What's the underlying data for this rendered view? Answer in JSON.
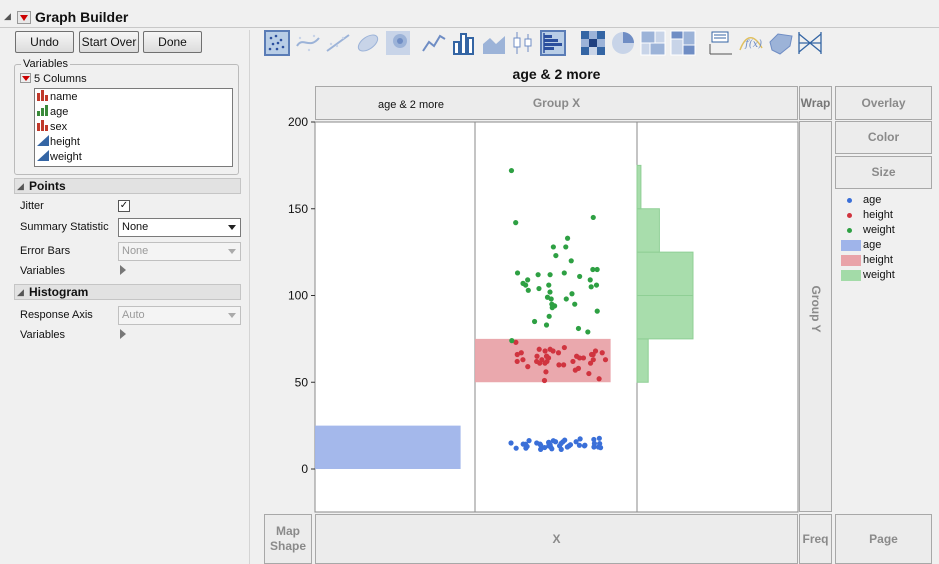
{
  "window": {
    "title": "Graph Builder"
  },
  "buttons": {
    "undo": "Undo",
    "start_over": "Start Over",
    "done": "Done"
  },
  "variables_panel": {
    "title": "Variables",
    "columns_header": "5 Columns",
    "columns": [
      {
        "name": "name",
        "icon": "nominal-icon",
        "color": "#c0392b"
      },
      {
        "name": "age",
        "icon": "ordinal-icon",
        "color": "#3a8a3a"
      },
      {
        "name": "sex",
        "icon": "nominal-icon",
        "color": "#c0392b"
      },
      {
        "name": "height",
        "icon": "continuous-icon",
        "color": "#3465a4"
      },
      {
        "name": "weight",
        "icon": "continuous-icon",
        "color": "#3465a4"
      }
    ]
  },
  "points_section": {
    "title": "Points",
    "jitter_label": "Jitter",
    "jitter_checked": true,
    "summary_label": "Summary Statistic",
    "summary_value": "None",
    "error_bars_label": "Error Bars",
    "error_bars_value": "None",
    "variables_label": "Variables"
  },
  "histogram_section": {
    "title": "Histogram",
    "response_axis_label": "Response Axis",
    "response_axis_value": "Auto",
    "variables_label": "Variables"
  },
  "toolbar": {
    "icons": [
      "points-icon",
      "contour-icon",
      "line-of-fit-icon",
      "ellipse-icon",
      "density-icon",
      "line-icon",
      "bar-icon",
      "area-icon",
      "box-plot-icon",
      "histogram-icon",
      "heatmap-icon",
      "pie-icon",
      "treemap-icon",
      "mosaic-icon",
      "caption-box-icon",
      "formula-icon",
      "map-shapes-icon",
      "parallel-icon"
    ],
    "active": [
      "points-icon",
      "histogram-icon"
    ]
  },
  "graph": {
    "title": "age & 2 more",
    "zones": {
      "group_x": "Group X",
      "group_x_value": "age & 2 more",
      "wrap": "Wrap",
      "overlay": "Overlay",
      "color": "Color",
      "size": "Size",
      "group_y": "Group Y",
      "map_shape": "Map\nShape",
      "x": "X",
      "freq": "Freq",
      "page": "Page"
    },
    "legend": [
      {
        "label": "age",
        "kind": "point",
        "color": "#3a6fd8"
      },
      {
        "label": "height",
        "kind": "point",
        "color": "#d0343f"
      },
      {
        "label": "weight",
        "kind": "point",
        "color": "#2ea043"
      },
      {
        "label": "age",
        "kind": "bar",
        "color": "#9fb4ea"
      },
      {
        "label": "height",
        "kind": "bar",
        "color": "#e9a3a9"
      },
      {
        "label": "weight",
        "kind": "bar",
        "color": "#a3dba8"
      }
    ]
  },
  "chart_data": {
    "type": "scatter",
    "title": "age & 2 more",
    "ylim": [
      0,
      200
    ],
    "yticks": [
      0,
      50,
      100,
      150,
      200
    ],
    "grid": false,
    "legend_position": "right",
    "histograms": [
      {
        "series": "age",
        "bins": [
          {
            "from": 0,
            "to": 25,
            "relative": 0.91
          }
        ]
      },
      {
        "series": "height",
        "bins": [
          {
            "from": 50,
            "to": 75,
            "relative": 0.92
          }
        ]
      },
      {
        "series": "weight",
        "bins": [
          {
            "from": 50,
            "to": 75,
            "relative": 0.2
          },
          {
            "from": 75,
            "to": 100,
            "relative": 1.0
          },
          {
            "from": 100,
            "to": 125,
            "relative": 1.0
          },
          {
            "from": 125,
            "to": 150,
            "relative": 0.4
          },
          {
            "from": 150,
            "to": 175,
            "relative": 0.07
          }
        ]
      }
    ],
    "series": [
      {
        "name": "age",
        "color": "#3a6fd8",
        "values": [
          12,
          12,
          12,
          12,
          12,
          12,
          12,
          12,
          13,
          13,
          13,
          13,
          13,
          13,
          13,
          14,
          14,
          14,
          14,
          14,
          14,
          14,
          14,
          14,
          14,
          15,
          15,
          15,
          15,
          15,
          15,
          15,
          16,
          16,
          16,
          17,
          17,
          17,
          17,
          17
        ]
      },
      {
        "name": "height",
        "color": "#d0343f",
        "values": [
          51,
          52,
          55,
          56,
          57,
          58,
          59,
          60,
          60,
          61,
          61,
          61,
          62,
          62,
          62,
          62,
          63,
          63,
          63,
          63,
          64,
          64,
          64,
          65,
          65,
          65,
          65,
          66,
          66,
          66,
          67,
          67,
          67,
          68,
          68,
          68,
          69,
          69,
          70,
          73
        ]
      },
      {
        "name": "weight",
        "color": "#2ea043",
        "values": [
          74,
          79,
          81,
          83,
          85,
          88,
          91,
          93,
          94,
          95,
          95,
          98,
          98,
          99,
          101,
          102,
          103,
          104,
          105,
          106,
          106,
          106,
          107,
          109,
          109,
          111,
          112,
          112,
          113,
          113,
          115,
          115,
          120,
          123,
          128,
          128,
          133,
          142,
          145,
          172
        ]
      }
    ]
  }
}
